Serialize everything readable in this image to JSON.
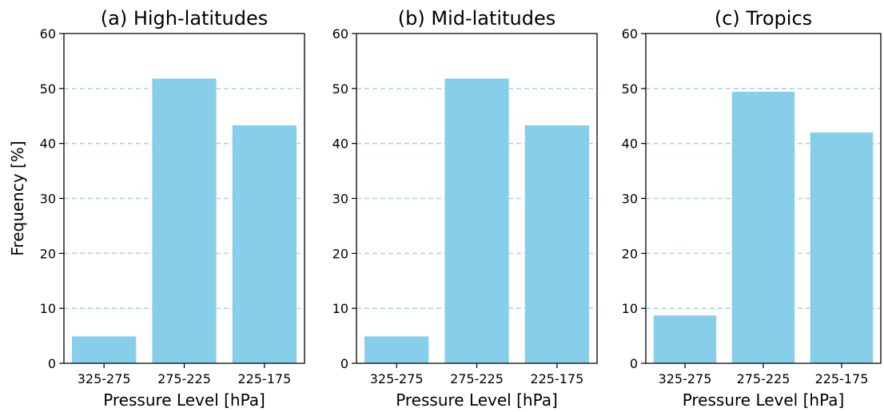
{
  "chart_data": [
    {
      "type": "bar",
      "title": "(a) High-latitudes",
      "categories": [
        "325-275",
        "275-225",
        "225-175"
      ],
      "values": [
        4.9,
        51.8,
        43.3
      ],
      "xlabel": "Pressure Level [hPa]",
      "ylabel": "Frequency [%]",
      "ylim": [
        0,
        60
      ],
      "yticks": [
        0,
        10,
        20,
        30,
        40,
        50,
        60
      ],
      "grid": "horizontal-dashed",
      "bar_color": "#87ceeb",
      "grid_color": "#add8e6"
    },
    {
      "type": "bar",
      "title": "(b) Mid-latitudes",
      "categories": [
        "325-275",
        "275-225",
        "225-175"
      ],
      "values": [
        4.9,
        51.8,
        43.3
      ],
      "xlabel": "Pressure Level [hPa]",
      "ylabel": "",
      "ylim": [
        0,
        60
      ],
      "yticks": [
        0,
        10,
        20,
        30,
        40,
        50,
        60
      ],
      "grid": "horizontal-dashed",
      "bar_color": "#87ceeb",
      "grid_color": "#add8e6"
    },
    {
      "type": "bar",
      "title": "(c) Tropics",
      "categories": [
        "325-275",
        "275-225",
        "225-175"
      ],
      "values": [
        8.7,
        49.4,
        42.0
      ],
      "xlabel": "Pressure Level [hPa]",
      "ylabel": "",
      "ylim": [
        0,
        60
      ],
      "yticks": [
        0,
        10,
        20,
        30,
        40,
        50,
        60
      ],
      "grid": "horizontal-dashed",
      "bar_color": "#87ceeb",
      "grid_color": "#add8e6"
    }
  ]
}
